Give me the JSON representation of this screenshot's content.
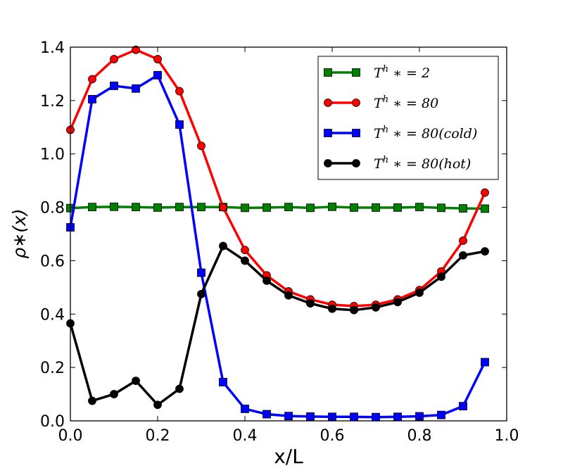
{
  "chart_data": {
    "type": "line",
    "title": "",
    "xlabel": "x/L",
    "ylabel": "ρ∗(x)",
    "xlim": [
      0.0,
      1.0
    ],
    "ylim": [
      0.0,
      1.4
    ],
    "xticks": [
      "0.0",
      "0.2",
      "0.4",
      "0.6",
      "0.8",
      "1.0"
    ],
    "yticks": [
      "0.0",
      "0.2",
      "0.4",
      "0.6",
      "0.8",
      "1.0",
      "1.2",
      "1.4"
    ],
    "legend_position": "top-right",
    "grid": false,
    "x": [
      0.0,
      0.05,
      0.1,
      0.15,
      0.2,
      0.25,
      0.3,
      0.35,
      0.4,
      0.45,
      0.5,
      0.55,
      0.6,
      0.65,
      0.7,
      0.75,
      0.8,
      0.85,
      0.9,
      0.95
    ],
    "series": [
      {
        "name": "T^h ∗ = 2",
        "legend_base": "T",
        "legend_sup": "h",
        "legend_rest": " ∗ = 2",
        "color": "#008000",
        "marker": "square",
        "values": [
          0.797,
          0.801,
          0.802,
          0.801,
          0.799,
          0.801,
          0.801,
          0.801,
          0.798,
          0.799,
          0.801,
          0.798,
          0.802,
          0.799,
          0.799,
          0.799,
          0.801,
          0.798,
          0.796,
          0.795
        ]
      },
      {
        "name": "T^h ∗ = 80",
        "legend_base": "T",
        "legend_sup": "h",
        "legend_rest": " ∗ = 80",
        "color": "#ff0000",
        "marker": "circle",
        "values": [
          1.09,
          1.28,
          1.355,
          1.39,
          1.355,
          1.235,
          1.03,
          0.8,
          0.64,
          0.545,
          0.485,
          0.455,
          0.435,
          0.43,
          0.435,
          0.455,
          0.49,
          0.56,
          0.675,
          0.855
        ]
      },
      {
        "name": "T^h ∗ = 80(cold)",
        "legend_base": "T",
        "legend_sup": "h",
        "legend_rest": " ∗ = 80(cold)",
        "color": "#0000ff",
        "marker": "square",
        "values": [
          0.725,
          1.205,
          1.255,
          1.245,
          1.295,
          1.11,
          0.555,
          0.145,
          0.045,
          0.025,
          0.018,
          0.016,
          0.015,
          0.015,
          0.014,
          0.015,
          0.017,
          0.022,
          0.055,
          0.22
        ]
      },
      {
        "name": "T^h ∗ = 80(hot)",
        "legend_base": "T",
        "legend_sup": "h",
        "legend_rest": " ∗ = 80(hot)",
        "color": "#000000",
        "marker": "circle",
        "values": [
          0.365,
          0.075,
          0.1,
          0.15,
          0.06,
          0.12,
          0.475,
          0.655,
          0.6,
          0.525,
          0.47,
          0.44,
          0.42,
          0.415,
          0.425,
          0.445,
          0.48,
          0.54,
          0.62,
          0.635
        ]
      }
    ]
  }
}
